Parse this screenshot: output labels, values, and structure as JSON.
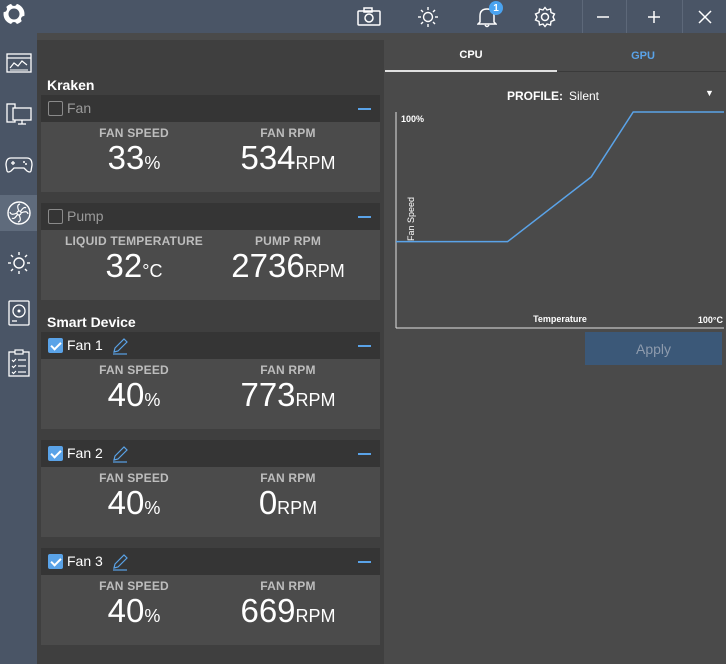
{
  "topbar": {
    "notification_count": "1"
  },
  "sidebar": {
    "items": [
      {
        "icon": "dashboard-icon"
      },
      {
        "icon": "pc-icon"
      },
      {
        "icon": "gamepad-icon"
      },
      {
        "icon": "fan-icon",
        "active": true
      },
      {
        "icon": "lighting-icon"
      },
      {
        "icon": "storage-icon"
      },
      {
        "icon": "clipboard-icon"
      }
    ]
  },
  "kraken": {
    "title": "Kraken",
    "fan": {
      "name": "Fan",
      "speed_label": "FAN SPEED",
      "speed_value": "33",
      "speed_unit": "%",
      "rpm_label": "FAN RPM",
      "rpm_value": "534",
      "rpm_unit": "RPM"
    },
    "pump": {
      "name": "Pump",
      "temp_label": "LIQUID TEMPERATURE",
      "temp_value": "32",
      "temp_unit": "°C",
      "rpm_label": "PUMP RPM",
      "rpm_value": "2736",
      "rpm_unit": "RPM"
    }
  },
  "smart_device": {
    "title": "Smart Device",
    "fans": [
      {
        "name": "Fan 1",
        "speed_label": "FAN SPEED",
        "speed_value": "40",
        "speed_unit": "%",
        "rpm_label": "FAN RPM",
        "rpm_value": "773",
        "rpm_unit": "RPM"
      },
      {
        "name": "Fan 2",
        "speed_label": "FAN SPEED",
        "speed_value": "40",
        "speed_unit": "%",
        "rpm_label": "FAN RPM",
        "rpm_value": "0",
        "rpm_unit": "RPM"
      },
      {
        "name": "Fan 3",
        "speed_label": "FAN SPEED",
        "speed_value": "40",
        "speed_unit": "%",
        "rpm_label": "FAN RPM",
        "rpm_value": "669",
        "rpm_unit": "RPM"
      }
    ]
  },
  "right_panel": {
    "tabs": [
      {
        "label": "CPU",
        "active": true
      },
      {
        "label": "GPU",
        "active": false
      }
    ],
    "profile_label": "PROFILE:",
    "profile_value": "Silent",
    "apply_label": "Apply"
  },
  "chart_data": {
    "type": "line",
    "ylabel": "Fan Speed",
    "xlabel": "Temperature",
    "y_max_label": "100%",
    "x_max_label": "100°C",
    "xlim": [
      0,
      100
    ],
    "ylim": [
      0,
      100
    ],
    "series": [
      {
        "x": [
          0,
          40,
          70,
          85,
          100
        ],
        "y": [
          40,
          40,
          70,
          100,
          100
        ]
      }
    ]
  }
}
